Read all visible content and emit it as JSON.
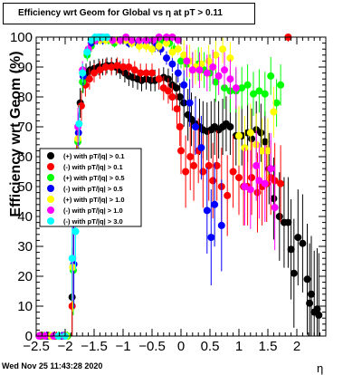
{
  "chart_data": {
    "type": "scatter",
    "title": "Efficiency wrt Geom for Global vs   η at pT > 0.11",
    "xlabel": "η",
    "ylabel": "Efficiency wrt Geom (%)",
    "footer": "Wed Nov 25 11:43:28 2020",
    "xlim": [
      -2.5,
      2.5
    ],
    "ylim": [
      0,
      100
    ],
    "x_ticks": [
      -2.5,
      -2,
      -1.5,
      -1,
      -0.5,
      0,
      0.5,
      1,
      1.5,
      2
    ],
    "x_tick_labels": [
      "−2.5",
      "−2",
      "−1.5",
      "−1",
      "−0.5",
      "0",
      "0.5",
      "1",
      "1.5",
      "2"
    ],
    "y_ticks": [
      0,
      10,
      20,
      30,
      40,
      50,
      60,
      70,
      80,
      90,
      100
    ],
    "y_tick_labels": [
      "0",
      "10",
      "20",
      "30",
      "40",
      "50",
      "60",
      "70",
      "80",
      "90",
      "100"
    ],
    "grid": false,
    "legend_position": "left-middle",
    "series": [
      {
        "name": "(+) with pT/|q| > 0.1",
        "color": "#000000",
        "points": [
          [
            -2.42,
            0
          ],
          [
            -2.3,
            0
          ],
          [
            -2.18,
            0
          ],
          [
            -2.02,
            0
          ],
          [
            -1.88,
            13
          ],
          [
            -1.8,
            60
          ],
          [
            -1.74,
            78
          ],
          [
            -1.69,
            85
          ],
          [
            -1.64,
            88
          ],
          [
            -1.57,
            89
          ],
          [
            -1.5,
            89.5
          ],
          [
            -1.42,
            90
          ],
          [
            -1.35,
            90
          ],
          [
            -1.28,
            90.5
          ],
          [
            -1.2,
            90.5
          ],
          [
            -1.12,
            90
          ],
          [
            -1.05,
            89
          ],
          [
            -0.97,
            88
          ],
          [
            -0.9,
            87
          ],
          [
            -0.83,
            86.5
          ],
          [
            -0.75,
            86
          ],
          [
            -0.68,
            85.5
          ],
          [
            -0.6,
            86
          ],
          [
            -0.52,
            85.5
          ],
          [
            -0.45,
            85.5
          ],
          [
            -0.38,
            86
          ],
          [
            -0.3,
            86.5
          ],
          [
            -0.22,
            86
          ],
          [
            -0.15,
            84
          ],
          [
            -0.08,
            83
          ],
          [
            -0.02,
            80
          ],
          [
            0.05,
            78
          ],
          [
            0.12,
            74
          ],
          [
            0.18,
            72.5
          ],
          [
            0.25,
            71
          ],
          [
            0.32,
            70
          ],
          [
            0.38,
            69
          ],
          [
            0.45,
            68.5
          ],
          [
            0.52,
            69
          ],
          [
            0.58,
            70
          ],
          [
            0.65,
            69
          ],
          [
            0.72,
            70
          ],
          [
            0.78,
            71
          ],
          [
            0.85,
            70
          ],
          [
            0.95,
            67
          ],
          [
            1.05,
            67
          ],
          [
            1.15,
            68
          ],
          [
            1.22,
            66
          ],
          [
            1.3,
            69
          ],
          [
            1.38,
            68
          ],
          [
            1.45,
            65
          ],
          [
            1.52,
            56
          ],
          [
            1.6,
            46
          ],
          [
            1.7,
            40
          ],
          [
            1.78,
            38
          ],
          [
            1.85,
            38
          ],
          [
            1.9,
            29
          ],
          [
            1.95,
            21
          ],
          [
            2.02,
            33
          ],
          [
            2.1,
            31
          ],
          [
            2.18,
            19
          ],
          [
            2.22,
            11
          ],
          [
            2.25,
            14
          ],
          [
            2.3,
            8
          ],
          [
            2.35,
            9
          ],
          [
            2.38,
            7
          ]
        ]
      },
      {
        "name": "(-) with pT/|q| > 0.1",
        "color": "#ff0000",
        "points": [
          [
            -2.4,
            0
          ],
          [
            -2.3,
            0
          ],
          [
            -2.15,
            0
          ],
          [
            -1.98,
            0
          ],
          [
            -1.88,
            10
          ],
          [
            -1.8,
            58
          ],
          [
            -1.72,
            77
          ],
          [
            -1.65,
            84
          ],
          [
            -1.58,
            86
          ],
          [
            -1.5,
            88
          ],
          [
            -1.4,
            89
          ],
          [
            -1.3,
            90
          ],
          [
            -1.2,
            90
          ],
          [
            -1.1,
            90.5
          ],
          [
            -1.0,
            90
          ],
          [
            -0.9,
            90
          ],
          [
            -0.8,
            89
          ],
          [
            -0.7,
            88
          ],
          [
            -0.6,
            88
          ],
          [
            -0.5,
            88
          ],
          [
            -0.38,
            86
          ],
          [
            -0.3,
            83
          ],
          [
            -0.22,
            82
          ],
          [
            -0.15,
            80
          ],
          [
            -0.07,
            76
          ],
          [
            -0.02,
            70
          ],
          [
            0.0,
            62
          ],
          [
            0.08,
            55
          ],
          [
            0.16,
            60
          ],
          [
            0.22,
            57
          ],
          [
            0.3,
            62
          ],
          [
            0.38,
            55
          ],
          [
            0.48,
            57
          ],
          [
            0.55,
            52
          ],
          [
            0.62,
            57
          ],
          [
            0.7,
            50
          ],
          [
            0.8,
            47
          ],
          [
            0.9,
            55
          ],
          [
            1.0,
            53
          ],
          [
            1.08,
            50
          ],
          [
            1.15,
            50
          ],
          [
            1.22,
            53
          ],
          [
            1.32,
            48
          ],
          [
            1.4,
            50
          ],
          [
            1.48,
            51
          ],
          [
            1.55,
            53
          ],
          [
            1.62,
            52
          ],
          [
            1.72,
            51
          ],
          [
            1.85,
            100
          ]
        ]
      },
      {
        "name": "(+) with pT/|q| > 0.5",
        "color": "#00ff00",
        "points": [
          [
            -2.38,
            0
          ],
          [
            -2.28,
            0
          ],
          [
            -2.1,
            0
          ],
          [
            -1.96,
            0
          ],
          [
            -1.86,
            22
          ],
          [
            -1.78,
            65
          ],
          [
            -1.7,
            85
          ],
          [
            -1.62,
            94
          ],
          [
            -1.55,
            97
          ],
          [
            -1.45,
            99
          ],
          [
            -1.35,
            99
          ],
          [
            -1.25,
            99
          ],
          [
            -1.15,
            98
          ],
          [
            -1.05,
            99
          ],
          [
            -0.95,
            99
          ],
          [
            -0.85,
            98
          ],
          [
            -0.75,
            98
          ],
          [
            -0.6,
            99
          ],
          [
            -0.5,
            99
          ],
          [
            -0.38,
            98
          ],
          [
            -0.28,
            99
          ],
          [
            -0.2,
            98
          ],
          [
            -0.12,
            96
          ],
          [
            0.0,
            92
          ],
          [
            0.1,
            91
          ],
          [
            0.2,
            89
          ],
          [
            0.3,
            91
          ],
          [
            0.4,
            89
          ],
          [
            0.5,
            88
          ],
          [
            0.6,
            85
          ],
          [
            0.75,
            83
          ],
          [
            0.85,
            82
          ],
          [
            0.95,
            82
          ],
          [
            1.05,
            83
          ],
          [
            1.15,
            84
          ],
          [
            1.25,
            81
          ],
          [
            1.35,
            82
          ],
          [
            1.45,
            81
          ],
          [
            1.55,
            87
          ],
          [
            1.65,
            78
          ],
          [
            1.72,
            84
          ]
        ]
      },
      {
        "name": "(-) with pT/|q| > 0.5",
        "color": "#0000ff",
        "points": [
          [
            -2.32,
            0
          ],
          [
            -2.2,
            0
          ],
          [
            -2.05,
            0
          ],
          [
            -1.85,
            24
          ],
          [
            -1.77,
            68
          ],
          [
            -1.69,
            87
          ],
          [
            -1.62,
            95
          ],
          [
            -1.55,
            98
          ],
          [
            -1.45,
            99
          ],
          [
            -1.35,
            99
          ],
          [
            -1.2,
            99
          ],
          [
            -1.05,
            99
          ],
          [
            -0.9,
            98
          ],
          [
            -0.75,
            98
          ],
          [
            -0.6,
            98
          ],
          [
            -0.45,
            97
          ],
          [
            -0.35,
            96
          ],
          [
            -0.25,
            93
          ],
          [
            -0.15,
            91
          ],
          [
            -0.05,
            88
          ],
          [
            0.05,
            84
          ],
          [
            0.15,
            78
          ],
          [
            0.25,
            70
          ],
          [
            0.35,
            63
          ],
          [
            0.45,
            42
          ],
          [
            0.52,
            33
          ],
          [
            0.58,
            44
          ],
          [
            0.7,
            37
          ]
        ]
      },
      {
        "name": "(+) with pT/|q| > 1.0",
        "color": "#ffff00",
        "points": [
          [
            -2.25,
            0
          ],
          [
            -2.12,
            0
          ],
          [
            -1.98,
            0
          ],
          [
            -1.87,
            23
          ],
          [
            -1.78,
            66
          ],
          [
            -1.7,
            88
          ],
          [
            -1.6,
            96
          ],
          [
            -1.5,
            99
          ],
          [
            -1.4,
            99
          ],
          [
            -1.3,
            99
          ],
          [
            -1.2,
            99
          ],
          [
            -1.1,
            99
          ],
          [
            -0.95,
            99
          ],
          [
            -0.85,
            98
          ],
          [
            -0.72,
            97
          ],
          [
            -0.6,
            97
          ],
          [
            -0.5,
            96
          ],
          [
            -0.38,
            97
          ],
          [
            -0.25,
            98
          ],
          [
            -0.15,
            95
          ],
          [
            -0.05,
            96
          ],
          [
            0.05,
            94
          ],
          [
            0.15,
            92
          ],
          [
            0.25,
            90
          ],
          [
            0.35,
            91
          ],
          [
            0.48,
            92
          ],
          [
            0.6,
            94
          ],
          [
            0.72,
            96
          ],
          [
            0.85,
            93
          ],
          [
            1.0,
            67
          ],
          [
            1.1,
            63
          ],
          [
            1.2,
            68
          ],
          [
            1.3,
            64
          ],
          [
            1.4,
            62
          ],
          [
            1.5,
            62
          ],
          [
            1.6,
            75
          ]
        ]
      },
      {
        "name": "(-) with pT/|q| > 1.0",
        "color": "#ff00ff",
        "points": [
          [
            -2.45,
            0
          ],
          [
            -2.35,
            0
          ],
          [
            -2.2,
            0
          ],
          [
            -2.02,
            0
          ],
          [
            -1.87,
            26
          ],
          [
            -1.78,
            70
          ],
          [
            -1.7,
            89
          ],
          [
            -1.6,
            96
          ],
          [
            -1.48,
            99
          ],
          [
            -1.38,
            100
          ],
          [
            -1.28,
            100
          ],
          [
            -1.18,
            99
          ],
          [
            -1.05,
            99
          ],
          [
            -0.95,
            100
          ],
          [
            -0.85,
            99
          ],
          [
            -0.72,
            99
          ],
          [
            -0.6,
            99
          ],
          [
            -0.48,
            99
          ],
          [
            -0.38,
            100
          ],
          [
            -0.25,
            100
          ],
          [
            -0.15,
            100
          ],
          [
            -0.05,
            99
          ],
          [
            0.1,
            92
          ],
          [
            0.2,
            89
          ],
          [
            0.32,
            89
          ],
          [
            0.45,
            88
          ],
          [
            0.55,
            90
          ],
          [
            0.65,
            87
          ],
          [
            0.75,
            89
          ],
          [
            0.85,
            86
          ],
          [
            0.95,
            83
          ],
          [
            1.1,
            50
          ],
          [
            1.2,
            49
          ],
          [
            1.3,
            57
          ],
          [
            1.35,
            52
          ],
          [
            1.45,
            51
          ],
          [
            1.55,
            56
          ],
          [
            1.62,
            43
          ]
        ]
      },
      {
        "name": "(-) with pT/|q| > 3.0",
        "color": "#00ffff",
        "points": [
          [
            -2.12,
            0
          ],
          [
            -2.0,
            0
          ],
          [
            -1.88,
            26
          ],
          [
            -1.82,
            35
          ],
          [
            -1.76,
            71
          ],
          [
            -1.7,
            88
          ],
          [
            -1.62,
            95
          ],
          [
            -1.55,
            99
          ],
          [
            -1.48,
            100
          ],
          [
            -1.42,
            100
          ],
          [
            -1.35,
            100
          ],
          [
            -1.28,
            100
          ]
        ]
      }
    ]
  }
}
